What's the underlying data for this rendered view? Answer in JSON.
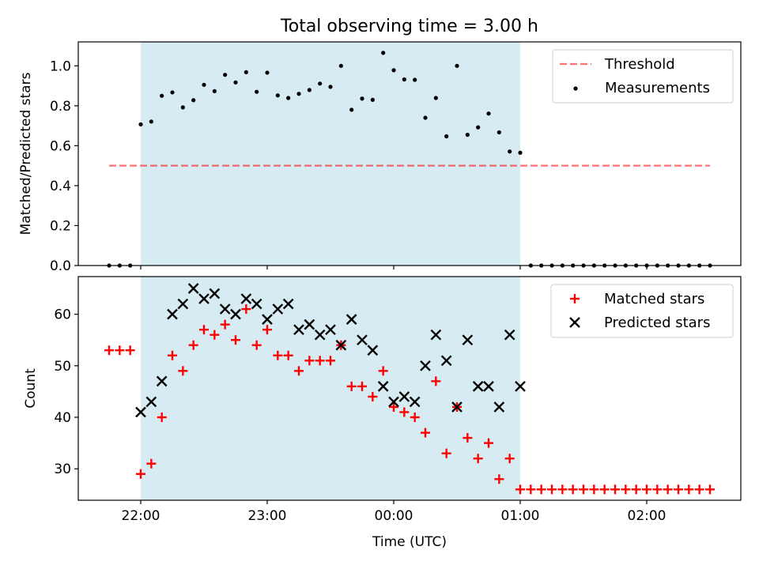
{
  "chart_data": {
    "title": "Total observing time = 3.00 h",
    "xlabel": "Time (UTC)",
    "x_ticks": [
      "22:00",
      "23:00",
      "00:00",
      "01:00",
      "02:00"
    ],
    "shaded_interval": [
      "22:00",
      "01:00"
    ],
    "shade_color": "#add8e6",
    "panels": [
      {
        "type": "scatter",
        "ylabel": "Matched/Predicted stars",
        "ylim": [
          0,
          1.12
        ],
        "yticks": [
          "0.0",
          "0.2",
          "0.4",
          "0.6",
          "0.8",
          "1.0"
        ],
        "legend_position": "upper right",
        "threshold": {
          "name": "Threshold",
          "value": 0.5,
          "x_range": [
            "21:45",
            "02:30"
          ],
          "color": "#ff0000",
          "style": "dashed"
        },
        "series": [
          {
            "name": "Measurements",
            "color": "#000000",
            "marker": "dot",
            "x": [
              "21:45",
              "21:50",
              "21:55",
              "22:00",
              "22:05",
              "22:10",
              "22:15",
              "22:20",
              "22:25",
              "22:30",
              "22:35",
              "22:40",
              "22:45",
              "22:50",
              "22:55",
              "23:00",
              "23:05",
              "23:10",
              "23:15",
              "23:20",
              "23:25",
              "23:30",
              "23:35",
              "23:40",
              "23:45",
              "23:50",
              "23:55",
              "00:00",
              "00:05",
              "00:10",
              "00:15",
              "00:20",
              "00:25",
              "00:30",
              "00:35",
              "00:40",
              "00:45",
              "00:50",
              "00:55",
              "01:00",
              "01:05",
              "01:10",
              "01:15",
              "01:20",
              "01:25",
              "01:30",
              "01:35",
              "01:40",
              "01:45",
              "01:50",
              "01:55",
              "02:00",
              "02:05",
              "02:10",
              "02:15",
              "02:20",
              "02:25",
              "02:30"
            ],
            "y": [
              0,
              0,
              0,
              0.707,
              0.721,
              0.85,
              0.867,
              0.792,
              0.828,
              0.905,
              0.873,
              0.955,
              0.917,
              0.968,
              0.87,
              0.966,
              0.852,
              0.839,
              0.86,
              0.879,
              0.911,
              0.895,
              1.0,
              0.78,
              0.836,
              0.83,
              1.065,
              0.978,
              0.932,
              0.93,
              0.74,
              0.839,
              0.647,
              1.0,
              0.655,
              0.692,
              0.761,
              0.667,
              0.571,
              0.565,
              0,
              0,
              0,
              0,
              0,
              0,
              0,
              0,
              0,
              0,
              0,
              0,
              0,
              0,
              0,
              0,
              0,
              0
            ]
          }
        ]
      },
      {
        "type": "scatter",
        "ylabel": "Count",
        "ylim": [
          23.9,
          67.3
        ],
        "yticks": [
          "30",
          "40",
          "50",
          "60"
        ],
        "legend_position": "upper right",
        "series": [
          {
            "name": "Matched stars",
            "color": "#ff0000",
            "marker": "plus",
            "x": [
              "21:45",
              "21:50",
              "21:55",
              "22:00",
              "22:05",
              "22:10",
              "22:15",
              "22:20",
              "22:25",
              "22:30",
              "22:35",
              "22:40",
              "22:45",
              "22:50",
              "22:55",
              "23:00",
              "23:05",
              "23:10",
              "23:15",
              "23:20",
              "23:25",
              "23:30",
              "23:35",
              "23:40",
              "23:45",
              "23:50",
              "23:55",
              "00:00",
              "00:05",
              "00:10",
              "00:15",
              "00:20",
              "00:25",
              "00:30",
              "00:35",
              "00:40",
              "00:45",
              "00:50",
              "00:55",
              "01:00",
              "01:05",
              "01:10",
              "01:15",
              "01:20",
              "01:25",
              "01:30",
              "01:35",
              "01:40",
              "01:45",
              "01:50",
              "01:55",
              "02:00",
              "02:05",
              "02:10",
              "02:15",
              "02:20",
              "02:25",
              "02:30"
            ],
            "y": [
              53,
              53,
              53,
              29,
              31,
              40,
              52,
              49,
              54,
              57,
              56,
              58,
              55,
              61,
              54,
              57,
              52,
              52,
              49,
              51,
              51,
              51,
              54,
              46,
              46,
              44,
              49,
              42,
              41,
              40,
              37,
              47,
              33,
              42,
              36,
              32,
              35,
              28,
              32,
              26,
              26,
              26,
              26,
              26,
              26,
              26,
              26,
              26,
              26,
              26,
              26,
              26,
              26,
              26,
              26,
              26,
              26,
              26
            ]
          },
          {
            "name": "Predicted stars",
            "color": "#000000",
            "marker": "x",
            "x": [
              "22:00",
              "22:05",
              "22:10",
              "22:15",
              "22:20",
              "22:25",
              "22:30",
              "22:35",
              "22:40",
              "22:45",
              "22:50",
              "22:55",
              "23:00",
              "23:05",
              "23:10",
              "23:15",
              "23:20",
              "23:25",
              "23:30",
              "23:35",
              "23:40",
              "23:45",
              "23:50",
              "23:55",
              "00:00",
              "00:05",
              "00:10",
              "00:15",
              "00:20",
              "00:25",
              "00:30",
              "00:35",
              "00:40",
              "00:45",
              "00:50",
              "00:55",
              "01:00"
            ],
            "y": [
              41,
              43,
              47,
              60,
              62,
              65,
              63,
              64,
              61,
              60,
              63,
              62,
              59,
              61,
              62,
              57,
              58,
              56,
              57,
              54,
              59,
              55,
              53,
              46,
              43,
              44,
              43,
              50,
              56,
              51,
              42,
              55,
              46,
              46,
              42,
              56,
              46
            ]
          }
        ]
      }
    ]
  }
}
